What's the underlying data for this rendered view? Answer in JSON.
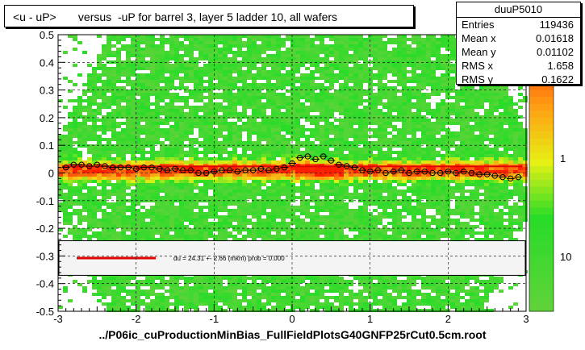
{
  "title": "<u - uP>       versus  -uP for barrel 3, layer 5 ladder 10, all wafers",
  "stats": {
    "name": "duuP5010",
    "rows": [
      {
        "label": "Entries",
        "value": "119436"
      },
      {
        "label": "Mean x",
        "value": "0.01618"
      },
      {
        "label": "Mean y",
        "value": "0.01102"
      },
      {
        "label": "RMS x",
        "value": "1.658"
      },
      {
        "label": "RMS y",
        "value": "0.1622"
      }
    ]
  },
  "legend_text": "du =   24.31 +-  2.66 (mkm) prob = 0.000",
  "x_title": "../P06ic_cuProductionMinBias_FullFieldPlotsG40GNFP25rCut0.5cm.root",
  "colors": {
    "fit_line": "#e00000",
    "profile_marker": "#000000",
    "low": "#40c040",
    "mid": "#f0f000",
    "high": "#ff2000"
  },
  "chart_data": {
    "type": "heatmap",
    "xlim": [
      -3,
      3
    ],
    "ylim": [
      -0.5,
      0.5
    ],
    "x_ticks": [
      -3,
      -2,
      -1,
      0,
      1,
      2,
      3
    ],
    "x_tick_labels": [
      "-3",
      "-2",
      "-1",
      "0",
      "1",
      "2",
      "3"
    ],
    "y_ticks": [
      -0.5,
      -0.4,
      -0.3,
      -0.2,
      -0.1,
      0,
      0.1,
      0.2,
      0.3,
      0.4,
      0.5
    ],
    "y_tick_labels": [
      "-0.5",
      "-0.4",
      "-0.3",
      "-0.2",
      "-0.1",
      "0",
      "0.1",
      "0.2",
      "0.3",
      "0.4",
      "0.5"
    ],
    "colorbar_tick_labels": [
      "1",
      "10"
    ],
    "colorbar_scale": "log",
    "fit": {
      "type": "line",
      "y": 0.024
    },
    "profile": {
      "x": [
        -2.9,
        -2.8,
        -2.7,
        -2.6,
        -2.5,
        -2.4,
        -2.3,
        -2.2,
        -2.1,
        -2.0,
        -1.9,
        -1.8,
        -1.7,
        -1.6,
        -1.5,
        -1.4,
        -1.3,
        -1.2,
        -1.1,
        -1.0,
        -0.9,
        -0.8,
        -0.7,
        -0.6,
        -0.5,
        -0.4,
        -0.3,
        -0.2,
        -0.1,
        0.0,
        0.1,
        0.2,
        0.3,
        0.4,
        0.5,
        0.6,
        0.7,
        0.8,
        0.9,
        1.0,
        1.1,
        1.2,
        1.3,
        1.4,
        1.5,
        1.6,
        1.7,
        1.8,
        1.9,
        2.0,
        2.1,
        2.2,
        2.3,
        2.4,
        2.5,
        2.6,
        2.7,
        2.8,
        2.9
      ],
      "y": [
        0.02,
        0.03,
        0.03,
        0.025,
        0.03,
        0.025,
        0.02,
        0.02,
        0.02,
        0.015,
        0.02,
        0.02,
        0.015,
        0.01,
        0.015,
        0.01,
        0.01,
        0.0,
        0.0,
        0.005,
        0.01,
        0.01,
        0.005,
        0.01,
        0.01,
        0.015,
        0.01,
        0.015,
        0.02,
        0.035,
        0.055,
        0.06,
        0.05,
        0.06,
        0.045,
        0.03,
        0.025,
        0.02,
        0.01,
        0.005,
        0.01,
        0.0,
        0.005,
        0.01,
        0.0,
        0.005,
        0.005,
        0.0,
        0.0,
        0.005,
        0.0,
        0.005,
        0.0,
        -0.005,
        -0.005,
        -0.01,
        -0.015,
        -0.02,
        -0.015
      ]
    }
  }
}
